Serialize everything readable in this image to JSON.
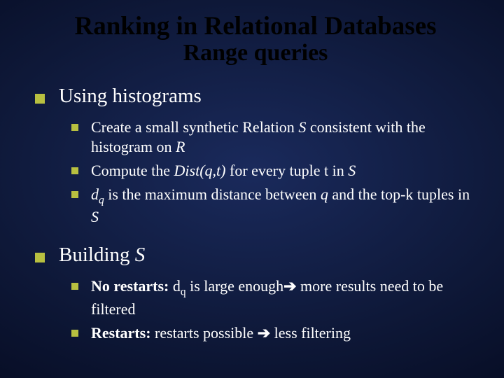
{
  "title": "Ranking in Relational Databases",
  "subtitle": "Range queries",
  "colors": {
    "bullet": "#b8c040",
    "title_text": "#000000",
    "body_text": "#ffffff",
    "bg_center": "#1a2a5c",
    "bg_edge": "#000000"
  },
  "typography": {
    "title_fontsize_pt": 28,
    "subtitle_fontsize_pt": 26,
    "top_fontsize_pt": 22,
    "sub_fontsize_pt": 17,
    "font_family": "Times New Roman"
  },
  "items": [
    {
      "label": "Using histograms",
      "children": [
        {
          "runs": [
            {
              "t": "Create a small synthetic Relation "
            },
            {
              "t": "S",
              "italic": true
            },
            {
              "t": " consistent with the histogram on "
            },
            {
              "t": "R",
              "italic": true
            }
          ]
        },
        {
          "runs": [
            {
              "t": "Compute the "
            },
            {
              "t": "Dist(q,t)",
              "italic": true
            },
            {
              "t": " for every tuple t in "
            },
            {
              "t": "S",
              "italic": true
            }
          ]
        },
        {
          "runs": [
            {
              "t": "d",
              "italic": true
            },
            {
              "t": "q",
              "sub": true,
              "italic": true
            },
            {
              "t": " is the maximum distance between "
            },
            {
              "t": "q",
              "italic": true
            },
            {
              "t": " and the top-k tuples in "
            },
            {
              "t": "S",
              "italic": true
            }
          ]
        }
      ]
    },
    {
      "label_runs": [
        {
          "t": "Building "
        },
        {
          "t": "S",
          "italic": true
        }
      ],
      "children": [
        {
          "runs": [
            {
              "t": "No restarts: ",
              "bold": true
            },
            {
              "t": "d"
            },
            {
              "t": "q",
              "sub": true
            },
            {
              "t": " is large enough"
            },
            {
              "t": "➔",
              "arrow": true
            },
            {
              "t": " more results need to be filtered"
            }
          ]
        },
        {
          "runs": [
            {
              "t": "Restarts: ",
              "bold": true
            },
            {
              "t": "restarts possible "
            },
            {
              "t": "➔",
              "arrow": true
            },
            {
              "t": " less filtering"
            }
          ]
        }
      ]
    }
  ]
}
